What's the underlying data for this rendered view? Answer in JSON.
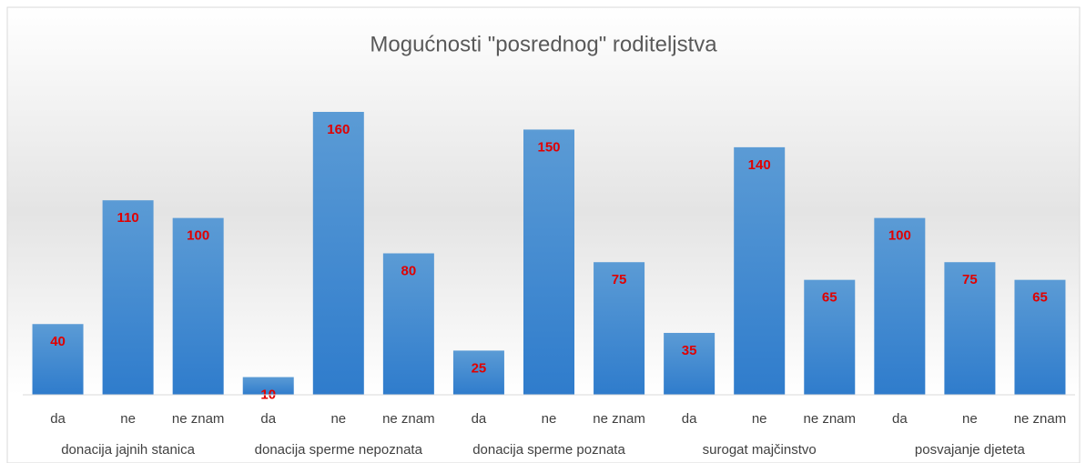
{
  "chart_data": {
    "type": "bar",
    "title": "Mogućnosti \"posrednog\" roditeljstva",
    "categories": [
      "da",
      "ne",
      "ne znam",
      "da",
      "ne",
      "ne znam",
      "da",
      "ne",
      "ne znam",
      "da",
      "ne",
      "ne znam",
      "da",
      "ne",
      "ne znam"
    ],
    "groups": [
      "donacija jajnih stanica",
      "donacija sperme nepoznata",
      "donacija sperme poznata",
      "surogat majčinstvo",
      "posvajanje djeteta"
    ],
    "values": [
      40,
      110,
      100,
      10,
      160,
      80,
      25,
      150,
      75,
      35,
      140,
      65,
      100,
      75,
      65
    ],
    "color": "#4a90d9",
    "label_color": "#e00000"
  }
}
